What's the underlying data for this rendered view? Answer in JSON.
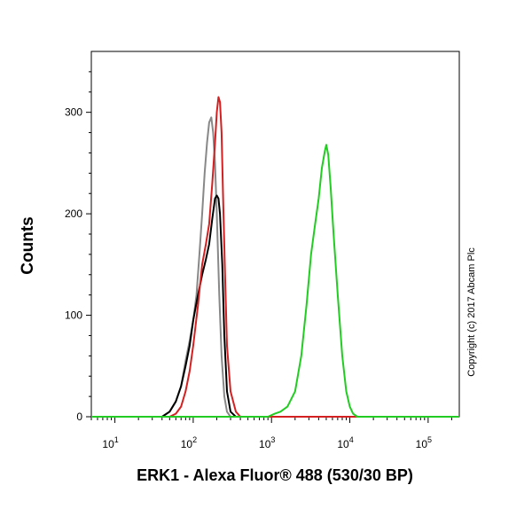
{
  "chart_data": {
    "type": "line",
    "xlabel": "ERK1 - Alexa Fluor® 488 (530/30 BP)",
    "ylabel": "Counts",
    "xscale": "log",
    "xlim": [
      5,
      250000
    ],
    "ylim": [
      0,
      360
    ],
    "x_ticks": [
      {
        "value": 10,
        "base": "10",
        "exp": "1"
      },
      {
        "value": 100,
        "base": "10",
        "exp": "2"
      },
      {
        "value": 1000,
        "base": "10",
        "exp": "3"
      },
      {
        "value": 10000,
        "base": "10",
        "exp": "4"
      },
      {
        "value": 100000,
        "base": "10",
        "exp": "5"
      }
    ],
    "y_ticks": [
      0,
      100,
      200,
      300
    ],
    "annotation": "Copyright (c) 2017 Abcam Plc",
    "series": [
      {
        "color": "#888888",
        "x": [
          5,
          40,
          50,
          60,
          70,
          80,
          90,
          100,
          110,
          120,
          130,
          140,
          150,
          160,
          170,
          180,
          190,
          200,
          215,
          230,
          250,
          270,
          300,
          350,
          400,
          250000
        ],
        "y": [
          0,
          0,
          5,
          15,
          30,
          55,
          75,
          95,
          120,
          160,
          200,
          240,
          270,
          290,
          295,
          280,
          250,
          200,
          120,
          60,
          20,
          5,
          0,
          0,
          0,
          0
        ]
      },
      {
        "color": "#000000",
        "x": [
          5,
          40,
          50,
          60,
          70,
          80,
          90,
          100,
          115,
          130,
          145,
          160,
          175,
          190,
          200,
          210,
          220,
          235,
          250,
          270,
          300,
          350,
          250000
        ],
        "y": [
          0,
          0,
          5,
          15,
          30,
          50,
          70,
          95,
          120,
          140,
          155,
          170,
          195,
          215,
          218,
          215,
          200,
          150,
          80,
          25,
          5,
          0,
          0
        ]
      },
      {
        "color": "#d42020",
        "x": [
          5,
          50,
          60,
          70,
          80,
          90,
          100,
          115,
          130,
          145,
          160,
          175,
          190,
          200,
          210,
          220,
          230,
          240,
          255,
          270,
          300,
          350,
          400,
          250000
        ],
        "y": [
          0,
          0,
          3,
          10,
          25,
          45,
          70,
          110,
          150,
          170,
          190,
          230,
          270,
          300,
          315,
          310,
          280,
          220,
          140,
          70,
          25,
          5,
          0,
          0
        ]
      },
      {
        "color": "#22cc22",
        "x": [
          5,
          900,
          1100,
          1300,
          1600,
          2000,
          2400,
          2800,
          3200,
          3600,
          4000,
          4400,
          4800,
          5000,
          5300,
          5700,
          6200,
          7000,
          8000,
          9000,
          10000,
          11000,
          12500,
          250000
        ],
        "y": [
          0,
          0,
          3,
          5,
          10,
          25,
          60,
          110,
          160,
          190,
          215,
          245,
          262,
          268,
          258,
          225,
          180,
          120,
          60,
          25,
          10,
          3,
          0,
          0
        ]
      }
    ]
  }
}
